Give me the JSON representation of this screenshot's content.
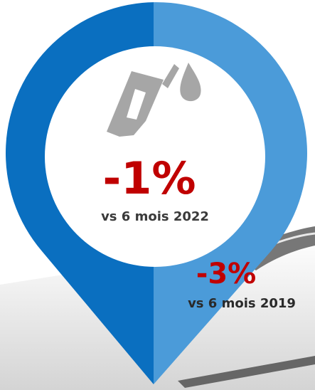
{
  "indicators": [
    {
      "value": "-1%",
      "label": "vs 6 mois 2022"
    },
    {
      "value": "-3%",
      "label": "vs 6 mois 2019"
    }
  ]
}
